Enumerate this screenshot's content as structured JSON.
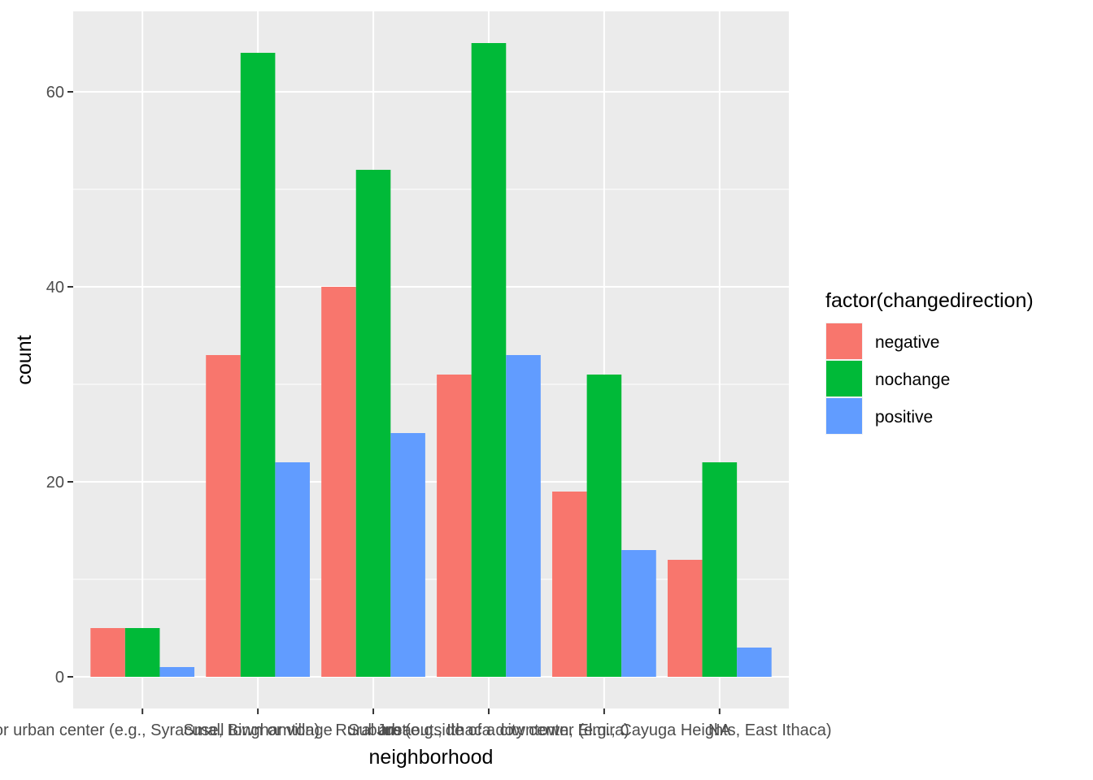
{
  "chart_data": {
    "type": "bar",
    "xlabel": "neighborhood",
    "ylabel": "count",
    "ylim": [
      -3.25,
      68.25
    ],
    "yticks": [
      0,
      20,
      40,
      60
    ],
    "grid": true,
    "legend_placement": "right",
    "legend_title": "factor(changedirection)",
    "categories": [
      "city or urban center (e.g., Syracuse, Binghamton)",
      "Small town or village",
      "Rural area",
      "Suburb (e.g., Ithaca downtown, Elmira)",
      "Just outside of a city center (e.g., Cayuga Heights, East Ithaca)",
      "NA"
    ],
    "series": [
      {
        "name": "negative",
        "color": "#F8766D",
        "values": [
          5,
          33,
          40,
          31,
          19,
          12
        ]
      },
      {
        "name": "nochange",
        "color": "#00BA38",
        "values": [
          5,
          64,
          52,
          65,
          31,
          22
        ]
      },
      {
        "name": "positive",
        "color": "#619CFF",
        "values": [
          1,
          22,
          25,
          33,
          13,
          3
        ]
      }
    ]
  }
}
